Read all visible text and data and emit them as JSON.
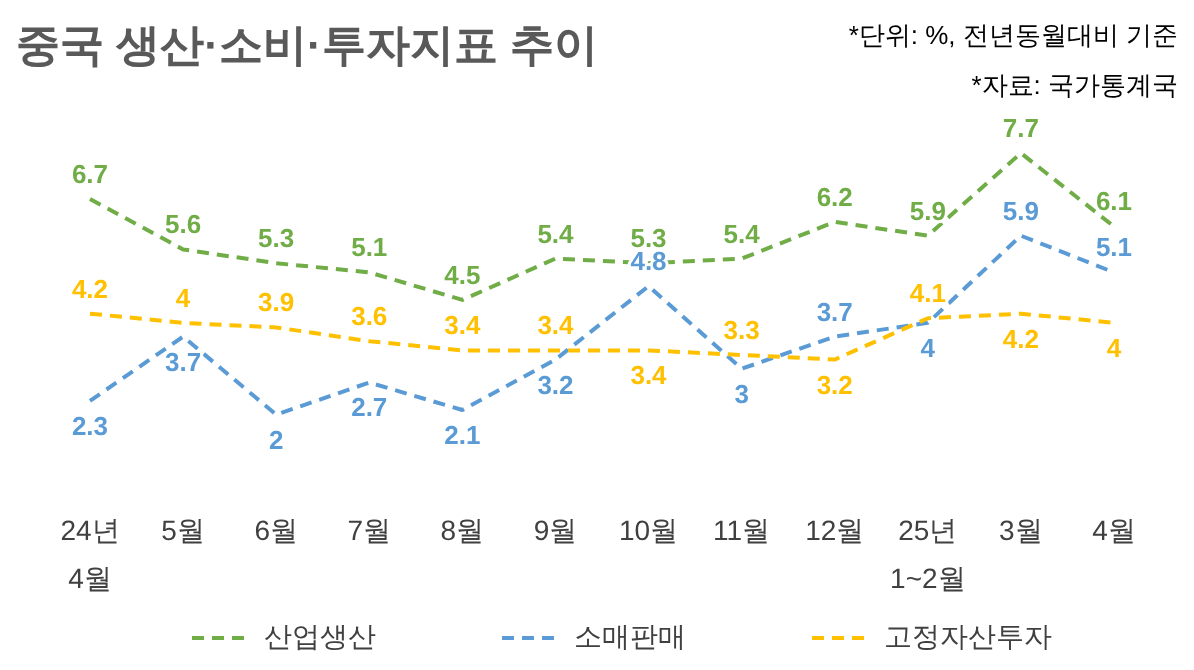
{
  "chart_data": {
    "type": "line",
    "title": "중국 생산·소비·투자지표 추이",
    "annotations": [
      "*단위: %, 전년동월대비 기준",
      "*자료: 국가통계국"
    ],
    "categories": [
      "24년\n4월",
      "5월",
      "6월",
      "7월",
      "8월",
      "9월",
      "10월",
      "11월",
      "12월",
      "25년\n1~2월",
      "3월",
      "4월"
    ],
    "series": [
      {
        "name": "산업생산",
        "color": "#70ad47",
        "values": [
          6.7,
          5.6,
          5.3,
          5.1,
          4.5,
          5.4,
          5.3,
          5.4,
          6.2,
          5.9,
          7.7,
          6.1
        ]
      },
      {
        "name": "소매판매",
        "color": "#5b9bd5",
        "values": [
          2.3,
          3.7,
          2,
          2.7,
          2.1,
          3.2,
          4.8,
          3,
          3.7,
          4,
          5.9,
          5.1
        ]
      },
      {
        "name": "고정자산투자",
        "color": "#ffc000",
        "values": [
          4.2,
          4,
          3.9,
          3.6,
          3.4,
          3.4,
          3.4,
          3.3,
          3.2,
          4.1,
          4.2,
          4
        ]
      }
    ],
    "data_labels": true,
    "line_style": "dashed",
    "marker": "none",
    "grid": false,
    "legend": "bottom"
  }
}
